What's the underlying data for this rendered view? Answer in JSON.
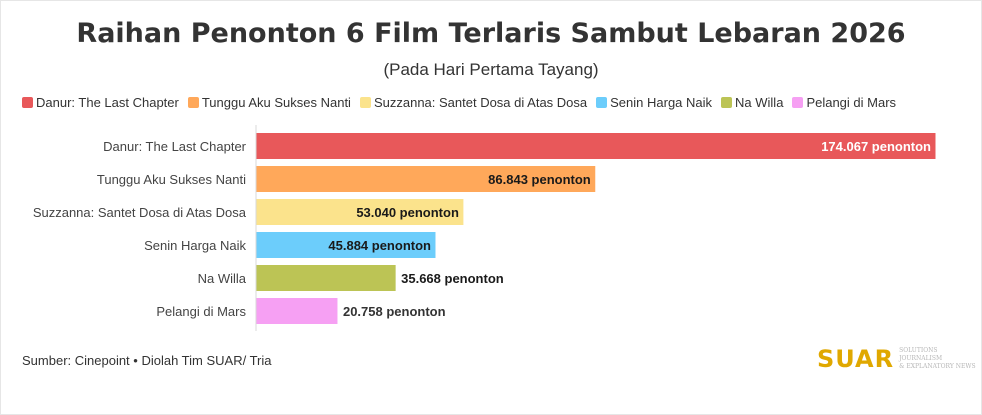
{
  "chart_data": {
    "type": "bar",
    "orientation": "horizontal",
    "title": "Raihan Penonton 6 Film Terlaris Sambut Lebaran 2026",
    "subtitle": "(Pada Hari Pertama Tayang)",
    "categories": [
      "Danur: The Last Chapter",
      "Tunggu Aku Sukses Nanti",
      "Suzzanna: Santet Dosa di Atas Dosa",
      "Senin Harga Naik",
      "Na Willa",
      "Pelangi di Mars"
    ],
    "values": [
      174067,
      86843,
      53040,
      45884,
      35668,
      20758
    ],
    "value_labels": [
      "174.067 penonton",
      "86.843 penonton",
      "53.040 penonton",
      "45.884 penonton",
      "35.668 penonton",
      "20.758 penonton"
    ],
    "colors": [
      "#e8585a",
      "#ffa85a",
      "#fbe38c",
      "#6ccdfb",
      "#bcc455",
      "#f6a0f3"
    ],
    "label_colors": [
      "#ffffff",
      "#1a1a1a",
      "#1a1a1a",
      "#1a1a1a",
      "#1a1a1a",
      "#333333"
    ],
    "xlim": [
      0,
      174067
    ],
    "grid": false,
    "legend_position": "top-left"
  },
  "source": "Sumber: Cinepoint • Diolah Tim SUAR/ Tria",
  "logo": {
    "word": "SUAR",
    "tagline": "SOLUTIONS JOURNALISM & EXPLANATORY NEWS"
  }
}
